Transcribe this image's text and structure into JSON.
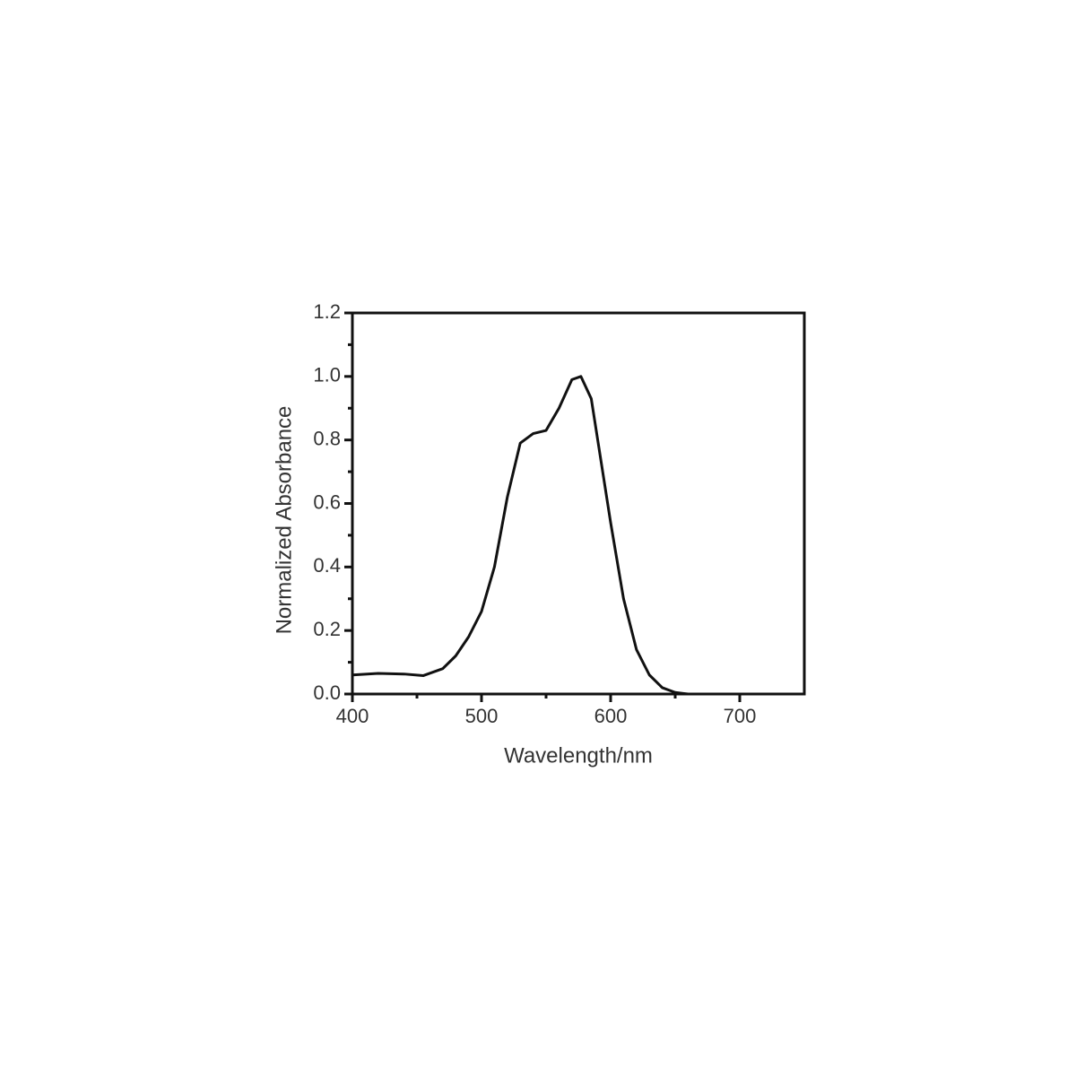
{
  "chart_data": {
    "type": "line",
    "x_label": "Wavelength/nm",
    "y_label": "Normalized Absorbance",
    "x": [
      400,
      420,
      440,
      455,
      470,
      480,
      490,
      500,
      510,
      520,
      530,
      540,
      550,
      560,
      570,
      577,
      585,
      590,
      600,
      610,
      620,
      630,
      640,
      650,
      660,
      700,
      750
    ],
    "values": [
      0.06,
      0.065,
      0.063,
      0.058,
      0.08,
      0.12,
      0.18,
      0.26,
      0.4,
      0.62,
      0.79,
      0.82,
      0.83,
      0.9,
      0.99,
      1.0,
      0.93,
      0.8,
      0.54,
      0.3,
      0.14,
      0.06,
      0.02,
      0.005,
      0.0,
      0.0,
      0.0
    ],
    "color": "#111111",
    "xlim": [
      400,
      750
    ],
    "ylim": [
      0,
      1.2
    ],
    "xticks": [
      400,
      500,
      600,
      700
    ],
    "yticks": [
      {
        "value": 0,
        "label": "0.0"
      },
      0.2,
      0.4,
      0.6,
      0.8,
      {
        "value": 1,
        "label": "1.0"
      },
      1.2
    ]
  }
}
